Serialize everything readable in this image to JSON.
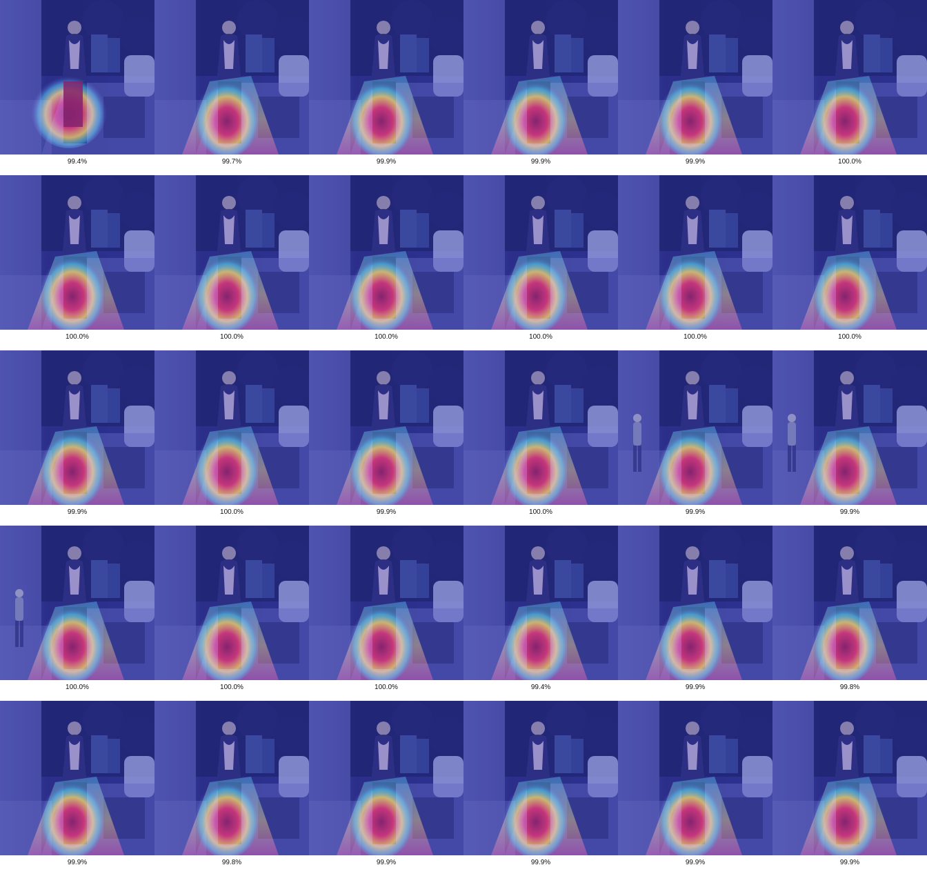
{
  "frames": [
    {
      "caption": "99.4%",
      "heat_variant": "a",
      "extra_pedestrian": false
    },
    {
      "caption": "99.7%",
      "heat_variant": "b",
      "extra_pedestrian": false
    },
    {
      "caption": "99.9%",
      "heat_variant": "b",
      "extra_pedestrian": false
    },
    {
      "caption": "99.9%",
      "heat_variant": "b",
      "extra_pedestrian": false
    },
    {
      "caption": "99.9%",
      "heat_variant": "b",
      "extra_pedestrian": false
    },
    {
      "caption": "100.0%",
      "heat_variant": "b",
      "extra_pedestrian": false
    },
    {
      "caption": "100.0%",
      "heat_variant": "b",
      "extra_pedestrian": false
    },
    {
      "caption": "100.0%",
      "heat_variant": "b",
      "extra_pedestrian": false
    },
    {
      "caption": "100.0%",
      "heat_variant": "b",
      "extra_pedestrian": false
    },
    {
      "caption": "100.0%",
      "heat_variant": "b",
      "extra_pedestrian": false
    },
    {
      "caption": "100.0%",
      "heat_variant": "b",
      "extra_pedestrian": false
    },
    {
      "caption": "100.0%",
      "heat_variant": "b",
      "extra_pedestrian": false
    },
    {
      "caption": "99.9%",
      "heat_variant": "b",
      "extra_pedestrian": false
    },
    {
      "caption": "100.0%",
      "heat_variant": "b",
      "extra_pedestrian": false
    },
    {
      "caption": "99.9%",
      "heat_variant": "b",
      "extra_pedestrian": false
    },
    {
      "caption": "100.0%",
      "heat_variant": "b",
      "extra_pedestrian": false
    },
    {
      "caption": "99.9%",
      "heat_variant": "b",
      "extra_pedestrian": true
    },
    {
      "caption": "99.9%",
      "heat_variant": "b",
      "extra_pedestrian": true
    },
    {
      "caption": "100.0%",
      "heat_variant": "b",
      "extra_pedestrian": true
    },
    {
      "caption": "100.0%",
      "heat_variant": "b",
      "extra_pedestrian": false
    },
    {
      "caption": "100.0%",
      "heat_variant": "b",
      "extra_pedestrian": false
    },
    {
      "caption": "99.4%",
      "heat_variant": "b",
      "extra_pedestrian": false
    },
    {
      "caption": "99.9%",
      "heat_variant": "b",
      "extra_pedestrian": false
    },
    {
      "caption": "99.8%",
      "heat_variant": "b",
      "extra_pedestrian": false
    },
    {
      "caption": "99.9%",
      "heat_variant": "b",
      "extra_pedestrian": false
    },
    {
      "caption": "99.8%",
      "heat_variant": "b",
      "extra_pedestrian": false
    },
    {
      "caption": "99.9%",
      "heat_variant": "b",
      "extra_pedestrian": false
    },
    {
      "caption": "99.9%",
      "heat_variant": "b",
      "extra_pedestrian": false
    },
    {
      "caption": "99.9%",
      "heat_variant": "b",
      "extra_pedestrian": false
    },
    {
      "caption": "99.9%",
      "heat_variant": "b",
      "extra_pedestrian": false
    }
  ],
  "colors": {
    "overlay_base": "#2f33a0",
    "heat_hot": "#8b0000",
    "heat_red": "#e31a1c",
    "heat_yellow": "#ffd400",
    "heat_cyan": "#35d0ff",
    "caption_text": "#111111"
  }
}
